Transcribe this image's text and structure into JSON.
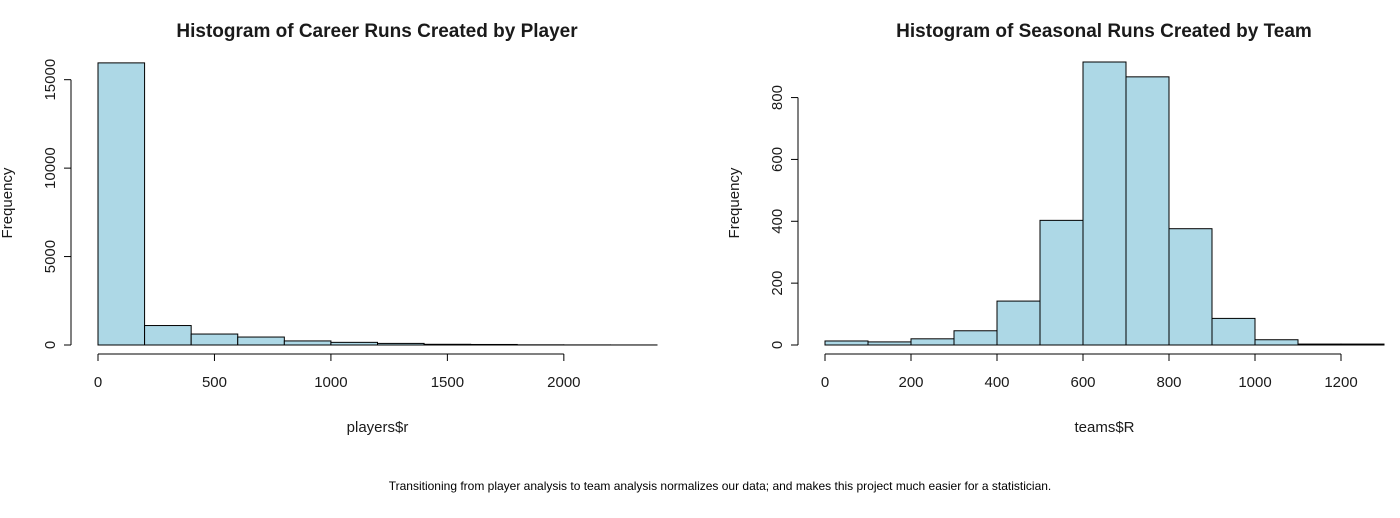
{
  "caption": "Transitioning from player analysis to team analysis normalizes our data; and makes this project much easier for a statistician.",
  "colors": {
    "bar_fill": "#add8e6",
    "bar_stroke": "#000000",
    "axis": "#000000",
    "text": "#1a1a1a"
  },
  "chart_data": [
    {
      "type": "bar",
      "title": "Histogram of Career Runs Created by Player",
      "xlabel": "players$r",
      "ylabel": "Frequency",
      "bin_width": 200,
      "x": [
        0,
        200,
        400,
        600,
        800,
        1000,
        1200,
        1400,
        1600,
        1800,
        2000,
        2200
      ],
      "values": [
        15950,
        1100,
        620,
        450,
        230,
        150,
        90,
        40,
        30,
        10,
        5,
        3
      ],
      "xlim": [
        0,
        2400
      ],
      "ylim": [
        0,
        16000
      ],
      "xticks": [
        0,
        500,
        1000,
        1500,
        2000
      ],
      "yticks": [
        0,
        5000,
        10000,
        15000
      ],
      "grid": false
    },
    {
      "type": "bar",
      "title": "Histogram of Seasonal Runs Created by Team",
      "xlabel": "teams$R",
      "ylabel": "Frequency",
      "bin_width": 100,
      "x": [
        0,
        100,
        200,
        300,
        400,
        500,
        600,
        700,
        800,
        900,
        1000,
        1100,
        1200
      ],
      "values": [
        13,
        10,
        20,
        46,
        142,
        403,
        915,
        867,
        376,
        86,
        17,
        3,
        3
      ],
      "xlim": [
        0,
        1300
      ],
      "ylim": [
        0,
        915
      ],
      "xticks": [
        0,
        200,
        400,
        600,
        800,
        1000,
        1200
      ],
      "yticks": [
        0,
        200,
        400,
        600,
        800
      ],
      "grid": false
    }
  ]
}
